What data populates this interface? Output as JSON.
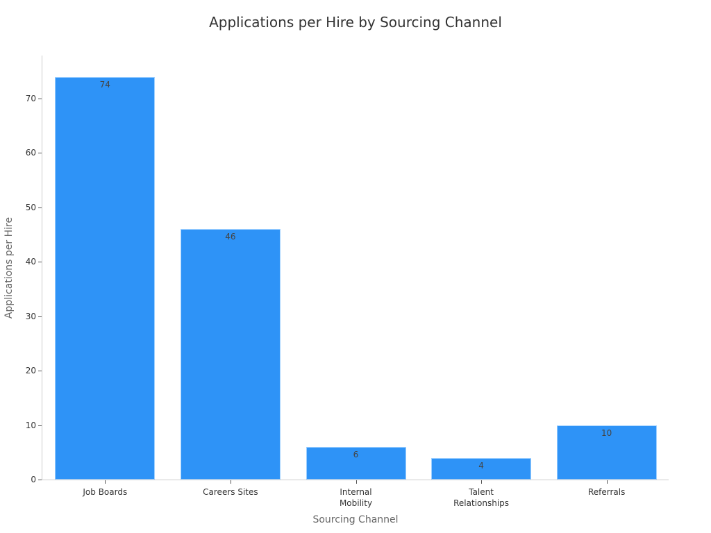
{
  "chart_data": {
    "type": "bar",
    "title": "Applications per Hire by Sourcing Channel",
    "xlabel": "Sourcing Channel",
    "ylabel": "Applications per Hire",
    "categories": [
      "Job Boards",
      "Careers Sites",
      "Internal\nMobility",
      "Talent\nRelationships",
      "Referrals"
    ],
    "values": [
      74,
      46,
      6,
      4,
      10
    ],
    "yticks": [
      0,
      10,
      20,
      30,
      40,
      50,
      60,
      70
    ],
    "ylim": [
      0,
      78
    ],
    "grid": false,
    "legend": null,
    "bar_color": "#2e93f7"
  }
}
